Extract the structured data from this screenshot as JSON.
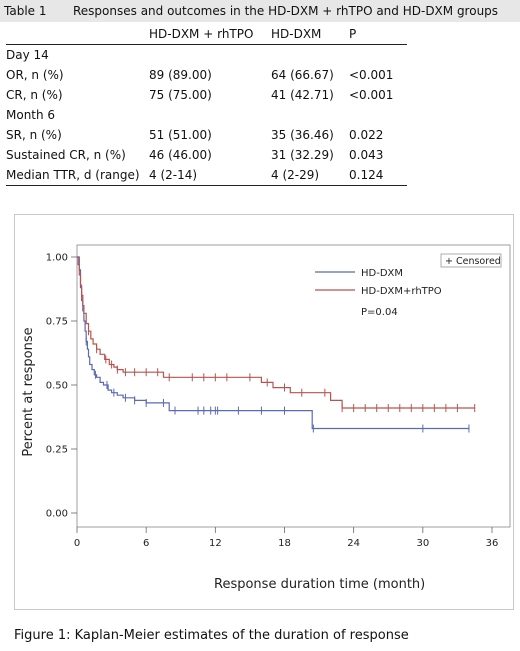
{
  "table": {
    "number": "Table 1",
    "caption": "Responses and outcomes in the HD-DXM + rhTPO and HD-DXM groups",
    "headers": [
      "",
      "HD-DXM + rhTPO",
      "HD-DXM",
      "P"
    ],
    "rows": [
      {
        "label": "Day 14",
        "section": true
      },
      {
        "label": "OR, n (%)",
        "c1": "89 (89.00)",
        "c2": "64 (66.67)",
        "p": "<0.001"
      },
      {
        "label": "CR, n (%)",
        "c1": "75 (75.00)",
        "c2": "41 (42.71)",
        "p": "<0.001"
      },
      {
        "label": "Month 6",
        "section": true
      },
      {
        "label": "SR, n (%)",
        "c1": "51 (51.00)",
        "c2": "35 (36.46)",
        "p": "0.022"
      },
      {
        "label": "Sustained CR, n (%)",
        "c1": "46 (46.00)",
        "c2": "31 (32.29)",
        "p": "0.043"
      },
      {
        "label": "Median TTR, d (range)",
        "c1": "4 (2-14)",
        "c2": "4 (2-29)",
        "p": "0.124",
        "top": true
      }
    ]
  },
  "figure": {
    "caption": "Figure 1: Kaplan-Meier estimates of the duration of response",
    "legend": {
      "censored": "+ Censored",
      "pvalue": "P=0.04"
    }
  },
  "chart_data": {
    "type": "line",
    "xlabel": "Response duration time (month)",
    "ylabel": "Percent at response",
    "xlim": [
      0,
      36
    ],
    "ylim": [
      0,
      1
    ],
    "xticks": [
      "0",
      "6",
      "12",
      "18",
      "24",
      "30",
      "36"
    ],
    "yticks": [
      "0.00",
      "0.25",
      "0.50",
      "0.75",
      "1.00"
    ],
    "grid": false,
    "legend_position": "top-right",
    "colors": {
      "hd_dxm": "#5b6ab3",
      "hd_dxm_rhtpo": "#b9534d"
    },
    "series": [
      {
        "name": "HD-DXM",
        "key": "hd_dxm",
        "x": [
          0,
          0.2,
          0.3,
          0.4,
          0.5,
          0.6,
          0.7,
          0.8,
          0.9,
          1.0,
          1.1,
          1.3,
          1.5,
          1.7,
          2.0,
          2.3,
          2.7,
          3.0,
          3.5,
          4.0,
          5.0,
          6.0,
          7.5,
          8.0,
          20.4,
          34.0
        ],
        "y": [
          1.0,
          0.95,
          0.88,
          0.83,
          0.79,
          0.75,
          0.71,
          0.67,
          0.64,
          0.61,
          0.58,
          0.56,
          0.54,
          0.53,
          0.51,
          0.5,
          0.48,
          0.47,
          0.46,
          0.45,
          0.44,
          0.43,
          0.43,
          0.4,
          0.33,
          0.33
        ],
        "censored_x": [
          0.8,
          1.6,
          2.6,
          3.2,
          4.2,
          5.0,
          6.0,
          7.5,
          8.5,
          10.5,
          11.0,
          11.6,
          12.0,
          12.2,
          14.0,
          16.0,
          18.0,
          20.5,
          30.0,
          34.0
        ]
      },
      {
        "name": "HD-DXM+rhTPO",
        "key": "hd_dxm_rhtpo",
        "x": [
          0,
          0.1,
          0.2,
          0.3,
          0.4,
          0.5,
          0.6,
          0.8,
          1.0,
          1.2,
          1.4,
          1.7,
          2.0,
          2.4,
          2.8,
          3.2,
          3.5,
          4.0,
          7.5,
          16.0,
          17.0,
          18.5,
          22.0,
          23.0,
          34.5
        ],
        "y": [
          1.0,
          0.97,
          0.93,
          0.89,
          0.85,
          0.81,
          0.78,
          0.74,
          0.71,
          0.68,
          0.66,
          0.64,
          0.62,
          0.6,
          0.58,
          0.57,
          0.56,
          0.55,
          0.53,
          0.51,
          0.49,
          0.47,
          0.44,
          0.41,
          0.41
        ],
        "censored_x": [
          0.4,
          1.0,
          1.7,
          2.5,
          3.0,
          3.5,
          4.2,
          5.0,
          6.0,
          7.0,
          8.0,
          10.0,
          11.0,
          12.0,
          13.0,
          15.0,
          16.5,
          18.0,
          19.5,
          21.5,
          23.0,
          24.0,
          25.0,
          26.0,
          27.0,
          28.0,
          29.0,
          30.0,
          31.0,
          32.0,
          33.0,
          34.5
        ]
      }
    ]
  }
}
